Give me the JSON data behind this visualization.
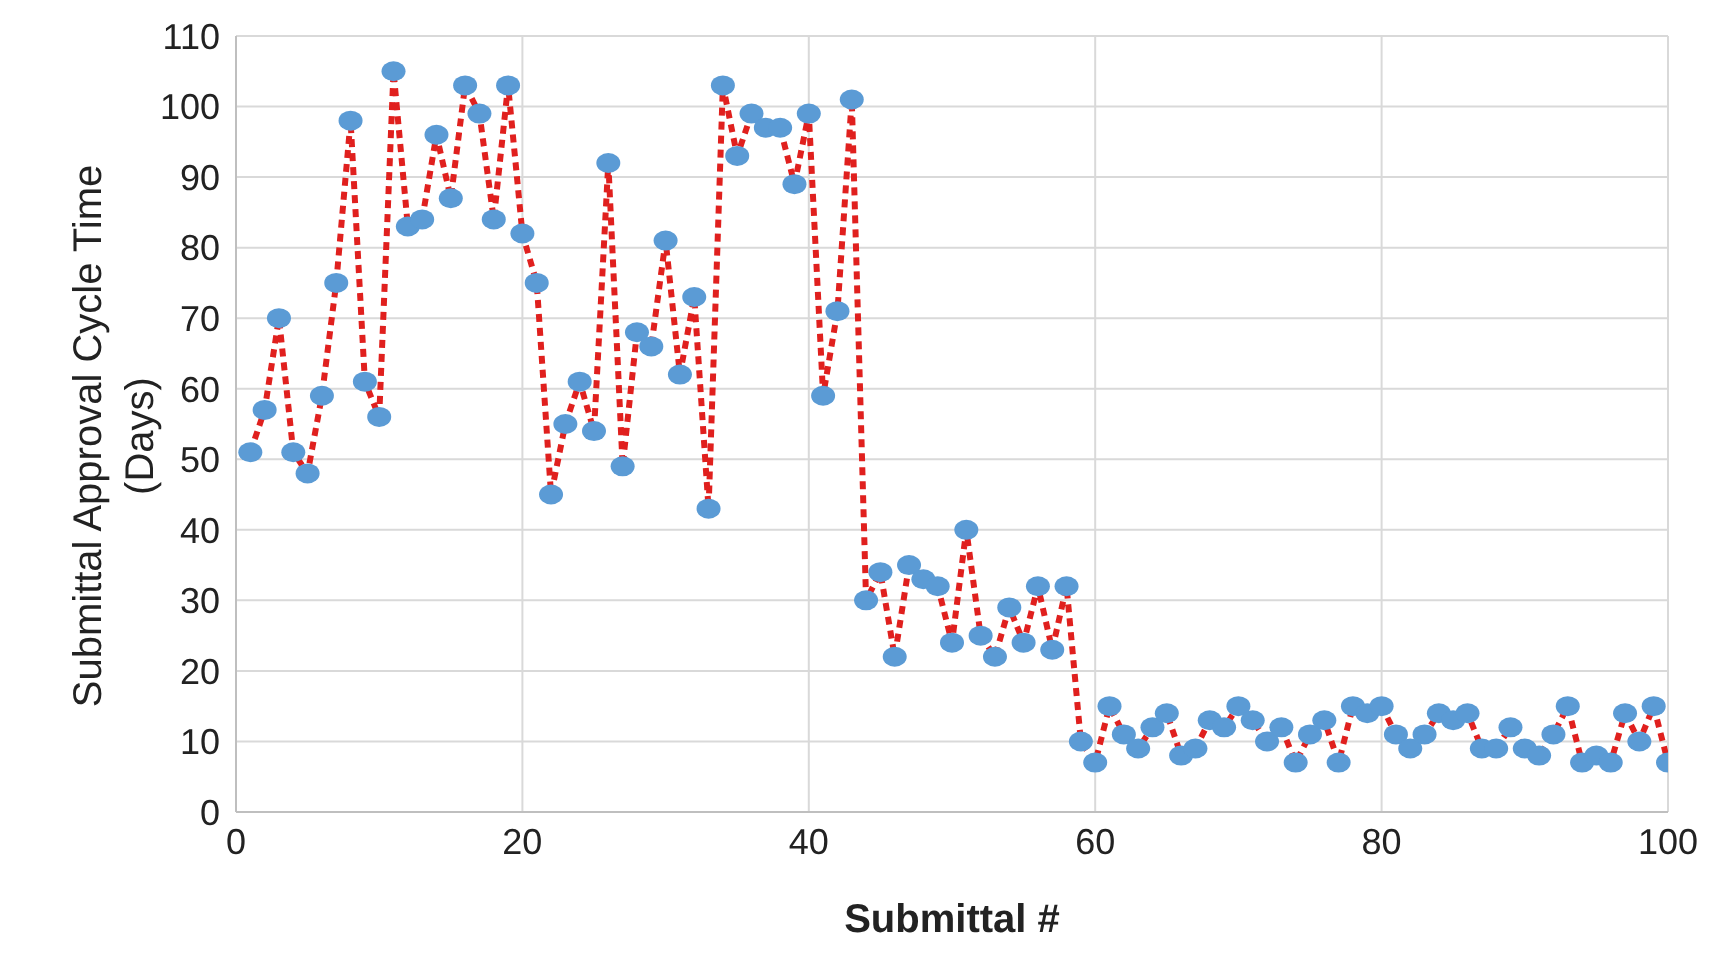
{
  "chart_data": {
    "type": "line",
    "xlabel": "Submittal #",
    "ylabel": "Submittal Approval Cycle Time (Days)",
    "x": [
      1,
      2,
      3,
      4,
      5,
      6,
      7,
      8,
      9,
      10,
      11,
      12,
      13,
      14,
      15,
      16,
      17,
      18,
      19,
      20,
      21,
      22,
      23,
      24,
      25,
      26,
      27,
      28,
      29,
      30,
      31,
      32,
      33,
      34,
      35,
      36,
      37,
      38,
      39,
      40,
      41,
      42,
      43,
      44,
      45,
      46,
      47,
      48,
      49,
      50,
      51,
      52,
      53,
      54,
      55,
      56,
      57,
      58,
      59,
      60,
      61,
      62,
      63,
      64,
      65,
      66,
      67,
      68,
      69,
      70,
      71,
      72,
      73,
      74,
      75,
      76,
      77,
      78,
      79,
      80,
      81,
      82,
      83,
      84,
      85,
      86,
      87,
      88,
      89,
      90,
      91,
      92,
      93,
      94,
      95,
      96,
      97,
      98,
      99,
      100
    ],
    "series": [
      {
        "color": "#e0201e",
        "values": [
          51,
          57,
          70,
          51,
          48,
          59,
          75,
          98,
          61,
          56,
          105,
          83,
          84,
          96,
          87,
          103,
          99,
          84,
          103,
          82,
          75,
          45,
          55,
          61,
          54,
          92,
          49,
          68,
          66,
          81,
          62,
          73,
          43,
          103,
          93,
          99,
          97,
          97,
          89,
          99,
          59,
          71,
          101,
          30,
          34,
          22,
          35,
          33,
          32,
          24,
          40,
          25,
          22,
          29,
          24,
          32,
          23,
          32,
          10,
          7,
          15,
          11,
          9,
          12,
          14,
          8,
          9,
          13,
          12,
          15,
          13,
          10,
          12,
          7,
          11,
          13,
          7,
          15,
          14,
          15,
          11,
          9,
          11,
          14,
          13,
          14,
          9,
          9,
          12,
          9,
          8,
          11,
          15,
          7,
          8,
          7,
          14,
          10,
          15,
          7
        ]
      }
    ],
    "xlim": [
      0,
      100
    ],
    "xticks": [
      0,
      20,
      40,
      60,
      80,
      100
    ],
    "ylim": [
      0,
      110
    ],
    "yticks": [
      0,
      10,
      20,
      30,
      40,
      50,
      60,
      70,
      80,
      90,
      100,
      110
    ],
    "grid": true,
    "marker": "circle",
    "line_style": "dashed"
  }
}
